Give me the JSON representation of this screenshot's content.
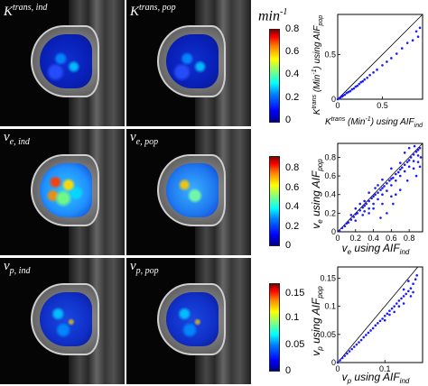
{
  "rows": [
    {
      "ind_label": {
        "main": "K",
        "sup": "trans, ind",
        "sub": ""
      },
      "pop_label": {
        "main": "K",
        "sup": "trans, pop",
        "sub": ""
      },
      "overlay_ind": "ov-k",
      "overlay_pop": "ov-k",
      "colorbar": {
        "ticks": [
          "0.8",
          "0.6",
          "0.4",
          "0.2",
          "0"
        ],
        "unit_main": "min",
        "unit_sup": "-1"
      },
      "scatter": {
        "ylabel": {
          "main": "K",
          "sup": "trans",
          "rest": " (Min",
          "sup2": "-1",
          "rest2": ") using AIF",
          "sub": "pop"
        },
        "xlabel": {
          "main": "K",
          "sup": "trans",
          "rest": " (Min",
          "sup2": "-1",
          "rest2": ") using AIF",
          "sub": "ind"
        }
      }
    },
    {
      "ind_label": {
        "main": "v",
        "sup": "",
        "sub": "e, ind"
      },
      "pop_label": {
        "main": "v",
        "sup": "",
        "sub": "e, pop"
      },
      "overlay_ind": "ov-ve",
      "overlay_pop": "ov-ve-pop",
      "colorbar": {
        "ticks": [
          "0.8",
          "0.6",
          "0.4",
          "0.2",
          "0"
        ],
        "unit_main": "",
        "unit_sup": ""
      },
      "scatter": {
        "ylabel": {
          "main": "v",
          "sub0": "e",
          "rest": " using AIF",
          "sub": "pop"
        },
        "xlabel": {
          "main": "v",
          "sub0": "e",
          "rest": " using AIF",
          "sub": "ind"
        }
      }
    },
    {
      "ind_label": {
        "main": "v",
        "sup": "",
        "sub": "p, ind"
      },
      "pop_label": {
        "main": "v",
        "sup": "",
        "sub": "p, pop"
      },
      "overlay_ind": "ov-vp",
      "overlay_pop": "ov-vp",
      "colorbar": {
        "ticks": [
          "0.15",
          "0.1",
          "0.05",
          "0"
        ],
        "unit_main": "",
        "unit_sup": ""
      },
      "scatter": {
        "ylabel": {
          "main": "v",
          "sub0": "p",
          "rest": " using AIF",
          "sub": "pop"
        },
        "xlabel": {
          "main": "v",
          "sub0": "p",
          "rest": " using AIF",
          "sub": "ind"
        }
      }
    }
  ],
  "chart_data": [
    {
      "type": "scatter",
      "xticks": [
        "0",
        "0.5"
      ],
      "yticks": [
        "0",
        "0.5"
      ],
      "xlim": [
        0,
        0.95
      ],
      "ylim": [
        0,
        0.95
      ],
      "identity_line": true,
      "point_color": "#1a1aff",
      "points": [
        [
          0.0,
          0.0
        ],
        [
          0.02,
          0.01
        ],
        [
          0.03,
          0.02
        ],
        [
          0.05,
          0.03
        ],
        [
          0.06,
          0.04
        ],
        [
          0.08,
          0.05
        ],
        [
          0.1,
          0.07
        ],
        [
          0.12,
          0.08
        ],
        [
          0.14,
          0.09
        ],
        [
          0.16,
          0.11
        ],
        [
          0.18,
          0.12
        ],
        [
          0.2,
          0.14
        ],
        [
          0.22,
          0.15
        ],
        [
          0.24,
          0.17
        ],
        [
          0.26,
          0.19
        ],
        [
          0.28,
          0.2
        ],
        [
          0.3,
          0.22
        ],
        [
          0.33,
          0.24
        ],
        [
          0.36,
          0.27
        ],
        [
          0.4,
          0.3
        ],
        [
          0.44,
          0.33
        ],
        [
          0.5,
          0.38
        ],
        [
          0.55,
          0.42
        ],
        [
          0.6,
          0.46
        ],
        [
          0.66,
          0.51
        ],
        [
          0.72,
          0.57
        ],
        [
          0.78,
          0.63
        ],
        [
          0.84,
          0.66
        ],
        [
          0.9,
          0.7
        ],
        [
          0.92,
          0.8
        ],
        [
          0.88,
          0.76
        ]
      ]
    },
    {
      "type": "scatter",
      "xticks": [
        "0",
        "0.2",
        "0.4",
        "0.6",
        "0.8"
      ],
      "yticks": [
        "0",
        "0.2",
        "0.4",
        "0.6",
        "0.8"
      ],
      "xlim": [
        0,
        0.95
      ],
      "ylim": [
        0,
        0.95
      ],
      "identity_line": true,
      "point_color": "#1a1aff",
      "points": [
        [
          0.02,
          0.01
        ],
        [
          0.05,
          0.04
        ],
        [
          0.08,
          0.06
        ],
        [
          0.1,
          0.09
        ],
        [
          0.12,
          0.1
        ],
        [
          0.15,
          0.13
        ],
        [
          0.18,
          0.16
        ],
        [
          0.2,
          0.19
        ],
        [
          0.22,
          0.2
        ],
        [
          0.25,
          0.23
        ],
        [
          0.28,
          0.26
        ],
        [
          0.3,
          0.28
        ],
        [
          0.32,
          0.3
        ],
        [
          0.35,
          0.33
        ],
        [
          0.38,
          0.36
        ],
        [
          0.4,
          0.38
        ],
        [
          0.42,
          0.4
        ],
        [
          0.45,
          0.42
        ],
        [
          0.48,
          0.45
        ],
        [
          0.5,
          0.47
        ],
        [
          0.52,
          0.49
        ],
        [
          0.55,
          0.52
        ],
        [
          0.58,
          0.55
        ],
        [
          0.6,
          0.57
        ],
        [
          0.62,
          0.58
        ],
        [
          0.65,
          0.62
        ],
        [
          0.68,
          0.64
        ],
        [
          0.7,
          0.67
        ],
        [
          0.72,
          0.69
        ],
        [
          0.75,
          0.72
        ],
        [
          0.78,
          0.75
        ],
        [
          0.8,
          0.77
        ],
        [
          0.82,
          0.8
        ],
        [
          0.85,
          0.83
        ],
        [
          0.88,
          0.86
        ],
        [
          0.9,
          0.88
        ],
        [
          0.92,
          0.9
        ],
        [
          0.3,
          0.22
        ],
        [
          0.35,
          0.25
        ],
        [
          0.4,
          0.3
        ],
        [
          0.45,
          0.35
        ],
        [
          0.5,
          0.4
        ],
        [
          0.55,
          0.44
        ],
        [
          0.6,
          0.5
        ],
        [
          0.65,
          0.55
        ],
        [
          0.7,
          0.6
        ],
        [
          0.75,
          0.65
        ],
        [
          0.8,
          0.7
        ],
        [
          0.85,
          0.76
        ],
        [
          0.9,
          0.82
        ],
        [
          0.45,
          0.5
        ],
        [
          0.5,
          0.56
        ],
        [
          0.6,
          0.68
        ],
        [
          0.7,
          0.74
        ],
        [
          0.4,
          0.25
        ],
        [
          0.5,
          0.3
        ],
        [
          0.6,
          0.38
        ],
        [
          0.55,
          0.2
        ],
        [
          0.62,
          0.3
        ],
        [
          0.7,
          0.45
        ],
        [
          0.48,
          0.15
        ],
        [
          0.65,
          0.4
        ],
        [
          0.78,
          0.55
        ],
        [
          0.85,
          0.68
        ],
        [
          0.9,
          0.75
        ],
        [
          0.75,
          0.85
        ],
        [
          0.8,
          0.9
        ],
        [
          0.86,
          0.92
        ],
        [
          0.3,
          0.33
        ],
        [
          0.25,
          0.3
        ],
        [
          0.2,
          0.25
        ],
        [
          0.15,
          0.18
        ],
        [
          0.35,
          0.42
        ],
        [
          0.42,
          0.47
        ],
        [
          0.88,
          0.6
        ],
        [
          0.92,
          0.7
        ],
        [
          0.93,
          0.8
        ],
        [
          0.2,
          0.12
        ],
        [
          0.28,
          0.18
        ],
        [
          0.35,
          0.2
        ]
      ]
    },
    {
      "type": "scatter",
      "xticks": [
        "0",
        "0.1"
      ],
      "yticks": [
        "0",
        "0.05",
        "0.1",
        "0.15"
      ],
      "xlim": [
        0,
        0.18
      ],
      "ylim": [
        0,
        0.17
      ],
      "identity_line": true,
      "point_color": "#1a1aff",
      "points": [
        [
          0.0,
          0.0
        ],
        [
          0.005,
          0.004
        ],
        [
          0.01,
          0.008
        ],
        [
          0.015,
          0.012
        ],
        [
          0.02,
          0.016
        ],
        [
          0.025,
          0.02
        ],
        [
          0.03,
          0.024
        ],
        [
          0.035,
          0.028
        ],
        [
          0.04,
          0.032
        ],
        [
          0.045,
          0.036
        ],
        [
          0.05,
          0.04
        ],
        [
          0.055,
          0.045
        ],
        [
          0.06,
          0.049
        ],
        [
          0.065,
          0.053
        ],
        [
          0.07,
          0.057
        ],
        [
          0.075,
          0.061
        ],
        [
          0.08,
          0.066
        ],
        [
          0.085,
          0.07
        ],
        [
          0.09,
          0.074
        ],
        [
          0.095,
          0.078
        ],
        [
          0.1,
          0.083
        ],
        [
          0.105,
          0.087
        ],
        [
          0.11,
          0.092
        ],
        [
          0.115,
          0.096
        ],
        [
          0.12,
          0.1
        ],
        [
          0.125,
          0.105
        ],
        [
          0.13,
          0.11
        ],
        [
          0.135,
          0.114
        ],
        [
          0.14,
          0.118
        ],
        [
          0.145,
          0.122
        ],
        [
          0.15,
          0.127
        ],
        [
          0.155,
          0.132
        ],
        [
          0.12,
          0.09
        ],
        [
          0.13,
          0.1
        ],
        [
          0.14,
          0.105
        ],
        [
          0.1,
          0.075
        ],
        [
          0.11,
          0.085
        ],
        [
          0.16,
          0.14
        ],
        [
          0.165,
          0.148
        ],
        [
          0.15,
          0.145
        ],
        [
          0.14,
          0.13
        ],
        [
          0.168,
          0.155
        ],
        [
          0.155,
          0.118
        ],
        [
          0.16,
          0.125
        ]
      ]
    }
  ]
}
